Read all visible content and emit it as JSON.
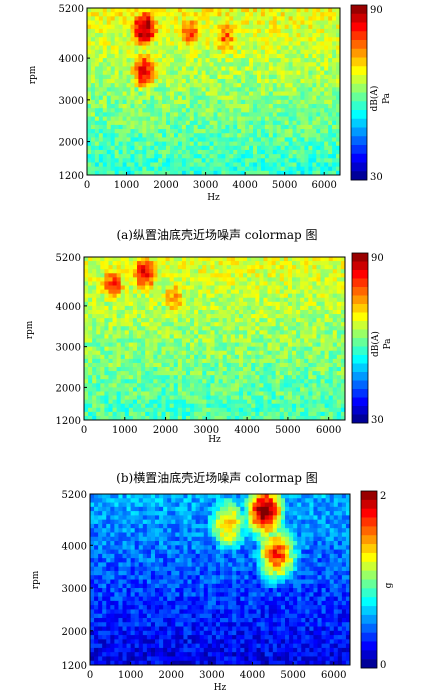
{
  "chart_data": [
    {
      "type": "heatmap",
      "caption": "(a)纵置油底壳近场噪声 colormap 图",
      "xlabel": "Hz",
      "ylabel": "rpm",
      "x_ticks": [
        0,
        1000,
        2000,
        3000,
        4000,
        5000,
        6000
      ],
      "y_ticks": [
        1200,
        2000,
        3000,
        4000,
        5200
      ],
      "xlim": [
        0,
        6400
      ],
      "ylim": [
        1200,
        5200
      ],
      "colorbar": {
        "min": 30,
        "max": 90,
        "label": "dB(A)",
        "unit": "Pa",
        "min_label": "30",
        "max_label": "90"
      },
      "hot_regions": [
        {
          "x": 1450,
          "y": 4700,
          "level": 0.98
        },
        {
          "x": 1450,
          "y": 3700,
          "level": 0.9
        },
        {
          "x": 2600,
          "y": 4600,
          "level": 0.8
        },
        {
          "x": 3500,
          "y": 4500,
          "level": 0.78
        }
      ],
      "base_level_high_rpm": 0.62,
      "base_level_low_rpm": 0.42
    },
    {
      "type": "heatmap",
      "caption": "(b)横置油底壳近场噪声 colormap 图",
      "xlabel": "Hz",
      "ylabel": "rpm",
      "x_ticks": [
        0,
        1000,
        2000,
        3000,
        4000,
        5000,
        6000
      ],
      "y_ticks": [
        1200,
        2000,
        3000,
        4000,
        5200
      ],
      "xlim": [
        0,
        6400
      ],
      "ylim": [
        1200,
        5200
      ],
      "colorbar": {
        "min": 30,
        "max": 90,
        "label": "dB(A)",
        "unit": "Pa",
        "min_label": "30",
        "max_label": "90"
      },
      "hot_regions": [
        {
          "x": 1500,
          "y": 4800,
          "level": 0.88
        },
        {
          "x": 700,
          "y": 4500,
          "level": 0.82
        },
        {
          "x": 2200,
          "y": 4200,
          "level": 0.74
        }
      ],
      "base_level_high_rpm": 0.6,
      "base_level_low_rpm": 0.44
    },
    {
      "type": "heatmap",
      "caption": "",
      "xlabel": "Hz",
      "ylabel": "rpm",
      "x_ticks": [
        0,
        1000,
        2000,
        3000,
        4000,
        5000,
        6000
      ],
      "y_ticks": [
        1200,
        2000,
        3000,
        4000,
        5200
      ],
      "xlim": [
        0,
        6400
      ],
      "ylim": [
        1200,
        5200
      ],
      "colorbar": {
        "min": 0,
        "max": 2,
        "label": "",
        "unit": "g",
        "min_label": "0",
        "max_label": "2"
      },
      "hot_regions": [
        {
          "x": 4300,
          "y": 4800,
          "level": 1.0
        },
        {
          "x": 4600,
          "y": 3800,
          "level": 0.85
        },
        {
          "x": 3400,
          "y": 4500,
          "level": 0.7
        }
      ],
      "base_level_high_rpm": 0.3,
      "base_level_low_rpm": 0.1
    }
  ]
}
